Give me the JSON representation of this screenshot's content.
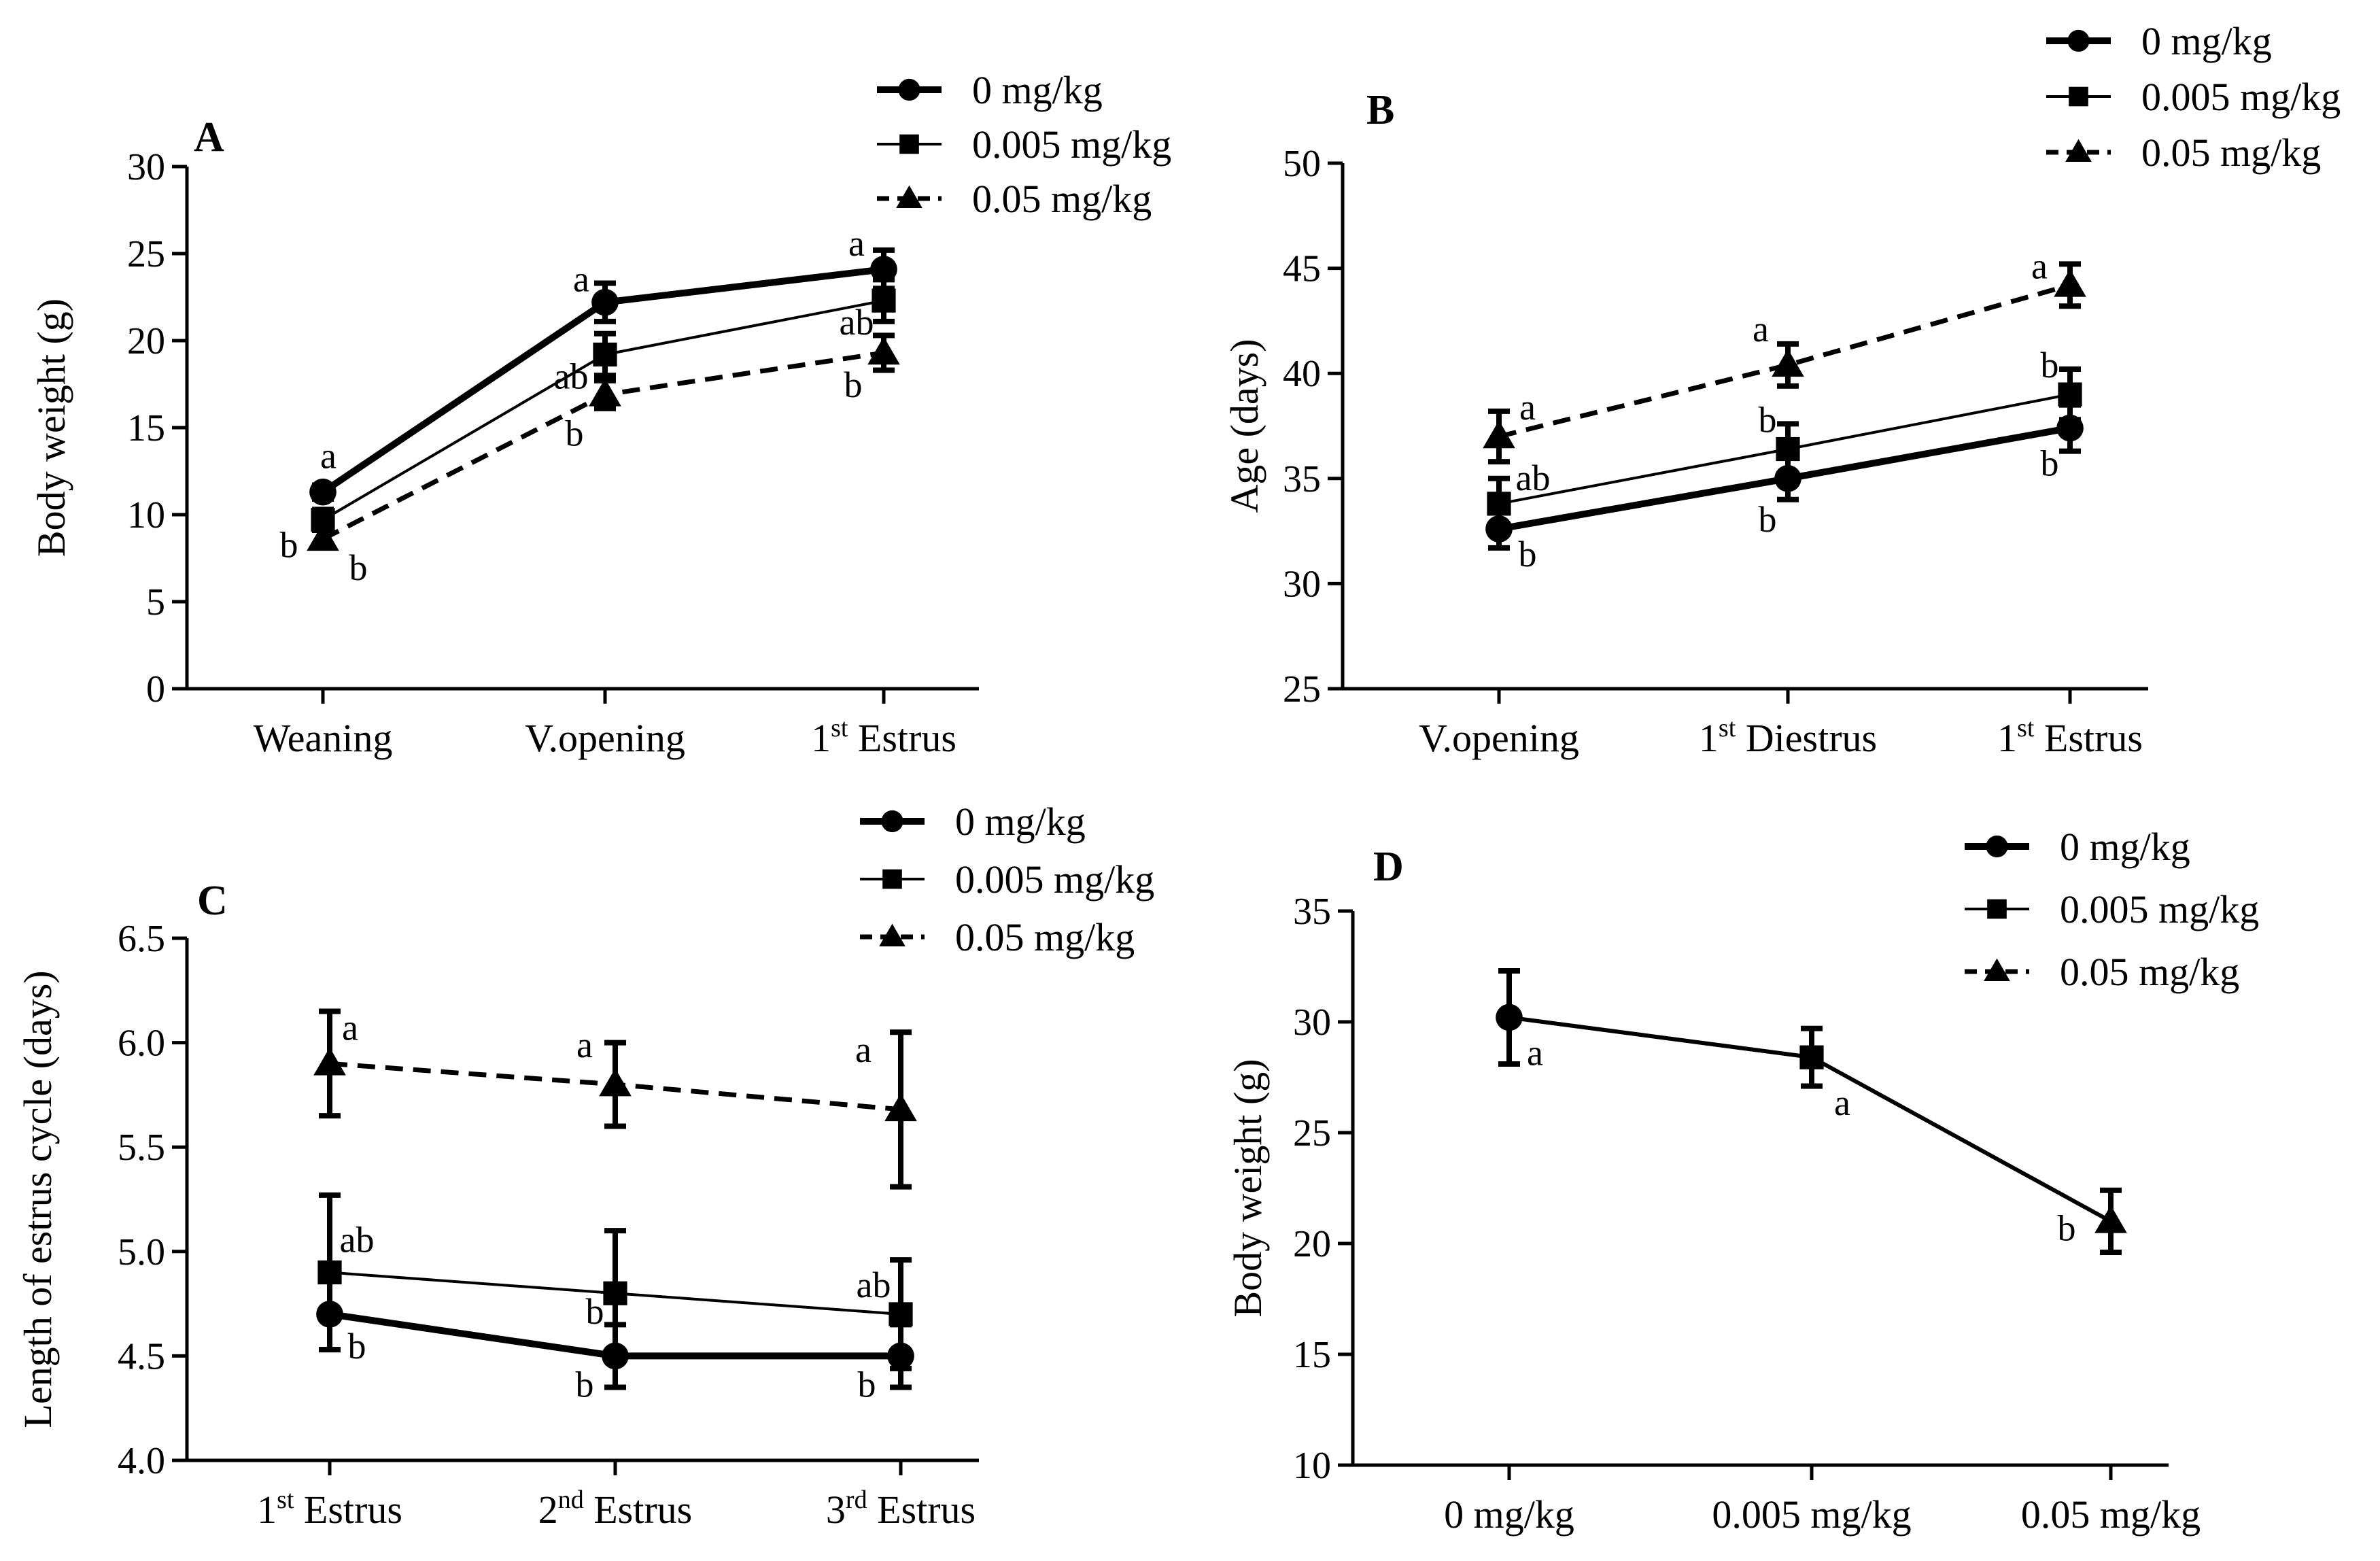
{
  "chart_data": [
    {
      "panel": "A",
      "type": "line",
      "ylabel": "Body weight (g)",
      "ylim": [
        0,
        30
      ],
      "yticks": [
        0,
        5,
        10,
        15,
        20,
        25,
        30
      ],
      "categories": [
        "Weaning",
        "V.opening",
        "1st Estrus"
      ],
      "categories_display": [
        {
          "main": "Weaning",
          "sup": "",
          "rest": ""
        },
        {
          "main": "V.opening",
          "sup": "",
          "rest": ""
        },
        {
          "main": "1",
          "sup": "st",
          "rest": " Estrus"
        }
      ],
      "legend": [
        "0 mg/kg",
        "0.005 mg/kg",
        "0.05 mg/kg"
      ],
      "legend_position": "top-right",
      "series": [
        {
          "name": "0 mg/kg",
          "marker": "circle",
          "style": "thick",
          "values": [
            11.3,
            22.2,
            24.1
          ],
          "errors": [
            0.4,
            1.1,
            1.1
          ],
          "labels": [
            "a",
            "a",
            "a"
          ]
        },
        {
          "name": "0.005 mg/kg",
          "marker": "square",
          "style": "thin",
          "values": [
            9.7,
            19.2,
            22.3
          ],
          "errors": [
            0.6,
            1.2,
            1.2
          ],
          "labels": [
            "b",
            "ab",
            "ab"
          ]
        },
        {
          "name": "0.05 mg/kg",
          "marker": "triangle",
          "style": "dashed",
          "values": [
            8.6,
            16.9,
            19.3
          ],
          "errors": [
            0.5,
            0.8,
            1.0
          ],
          "labels": [
            "b",
            "b",
            "b"
          ]
        }
      ]
    },
    {
      "panel": "B",
      "type": "line",
      "ylabel": "Age (days)",
      "ylim": [
        25,
        50
      ],
      "yticks": [
        25,
        30,
        35,
        40,
        45,
        50
      ],
      "categories": [
        "V.opening",
        "1st Diestrus",
        "1st Estrus"
      ],
      "categories_display": [
        {
          "main": "V.opening",
          "sup": "",
          "rest": ""
        },
        {
          "main": "1",
          "sup": "st",
          "rest": " Diestrus"
        },
        {
          "main": "1",
          "sup": "st",
          "rest": " Estrus"
        }
      ],
      "legend": [
        "0 mg/kg",
        "0.005 mg/kg",
        "0.05 mg/kg"
      ],
      "legend_position": "top-right",
      "series": [
        {
          "name": "0 mg/kg",
          "marker": "circle",
          "style": "thick",
          "values": [
            32.6,
            35.0,
            37.4
          ],
          "errors": [
            0.9,
            1.0,
            1.1
          ],
          "labels": [
            "b",
            "b",
            "b"
          ]
        },
        {
          "name": "0.005 mg/kg",
          "marker": "square",
          "style": "thin",
          "values": [
            33.8,
            36.4,
            39.0
          ],
          "errors": [
            1.2,
            1.2,
            1.2
          ],
          "labels": [
            "ab",
            "b",
            "b"
          ]
        },
        {
          "name": "0.05 mg/kg",
          "marker": "triangle",
          "style": "dashed",
          "values": [
            37.0,
            40.4,
            44.2
          ],
          "errors": [
            1.2,
            1.0,
            1.0
          ],
          "labels": [
            "a",
            "a",
            "a"
          ]
        }
      ]
    },
    {
      "panel": "C",
      "type": "line",
      "ylabel": "Length of estrus cycle (days)",
      "ylim": [
        4.0,
        6.5
      ],
      "yticks": [
        "4.0",
        "4.5",
        "5.0",
        "5.5",
        "6.0",
        "6.5"
      ],
      "categories": [
        "1st Estrus",
        "2nd Estrus",
        "3rd Estrus"
      ],
      "categories_display": [
        {
          "main": "1",
          "sup": "st",
          "rest": " Estrus"
        },
        {
          "main": "2",
          "sup": "nd",
          "rest": " Estrus"
        },
        {
          "main": "3",
          "sup": "rd",
          "rest": " Estrus"
        }
      ],
      "legend": [
        "0 mg/kg",
        "0.005 mg/kg",
        "0.05 mg/kg"
      ],
      "legend_position": "top-right",
      "series": [
        {
          "name": "0 mg/kg",
          "marker": "circle",
          "style": "thick",
          "values": [
            4.7,
            4.5,
            4.5
          ],
          "errors": [
            0.17,
            0.15,
            0.15
          ],
          "labels": [
            "b",
            "b",
            "b"
          ]
        },
        {
          "name": "0.005 mg/kg",
          "marker": "square",
          "style": "thin",
          "values": [
            4.9,
            4.8,
            4.7
          ],
          "errors": [
            0.37,
            0.3,
            0.26
          ],
          "labels": [
            "ab",
            "b",
            "ab"
          ]
        },
        {
          "name": "0.05 mg/kg",
          "marker": "triangle",
          "style": "dashed",
          "values": [
            5.9,
            5.8,
            5.68
          ],
          "errors": [
            0.25,
            0.2,
            0.37
          ],
          "labels": [
            "a",
            "a",
            "a"
          ]
        }
      ]
    },
    {
      "panel": "D",
      "type": "line",
      "ylabel": "Body weight (g)",
      "ylim": [
        10,
        35
      ],
      "yticks": [
        10,
        15,
        20,
        25,
        30,
        35
      ],
      "categories": [
        "0 mg/kg",
        "0.005 mg/kg",
        "0.05 mg/kg"
      ],
      "categories_display": [
        {
          "main": "0 mg/kg",
          "sup": "",
          "rest": ""
        },
        {
          "main": "0.005 mg/kg",
          "sup": "",
          "rest": ""
        },
        {
          "main": "0.05 mg/kg",
          "sup": "",
          "rest": ""
        }
      ],
      "legend": [
        "0 mg/kg",
        "0.005 mg/kg",
        "0.05 mg/kg"
      ],
      "legend_position": "top-right",
      "series": [
        {
          "name": "Body weight",
          "markers": [
            "circle",
            "square",
            "triangle"
          ],
          "style": "medium",
          "values": [
            30.2,
            28.4,
            21.0
          ],
          "errors": [
            2.1,
            1.3,
            1.4
          ],
          "labels": [
            "a",
            "a",
            "b"
          ]
        }
      ]
    }
  ]
}
